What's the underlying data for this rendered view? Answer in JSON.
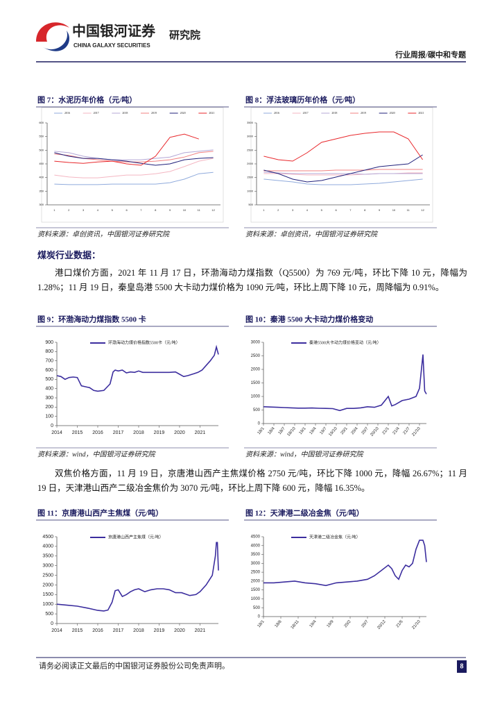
{
  "header": {
    "company_cn": "中国银河证券",
    "company_en": "CHINA GALAXY SECURITIES",
    "dept": "研究院",
    "section": "行业周报/碳中和专题"
  },
  "body": {
    "heading": "煤炭行业数据：",
    "paragraphs": [
      "港口煤价方面，2021 年 11 月 17 日，环渤海动力煤指数（Q5500）为 769 元/吨，环比下降 10 元，降幅为 1.28%；11 月 19 日，秦皇岛港 5500 大卡动力煤价格为 1090 元/吨，环比上周下降 10 元，周降幅为 0.91%。",
      "双焦价格方面，11 月 19 日，京唐港山西产主焦煤价格 2750 元/吨，环比下降 1000 元，降幅 26.67%；11 月 19 日，天津港山西产二级冶金焦价为 3070 元/吨，环比上周下降 600 元，降幅 16.35%。"
    ]
  },
  "footer": {
    "disclaimer": "请务必阅读正文最后的中国银河证券股份公司免责声明。",
    "page": 8
  },
  "chart_data": [
    {
      "type": "line",
      "title": "图 7：水泥历年价格（元/吨）",
      "source": "资料来源：卓创资讯，中国银河证券研究院",
      "categories": [
        "1",
        "2",
        "3",
        "4",
        "5",
        "6",
        "7",
        "8",
        "9",
        "10",
        "11",
        "12"
      ],
      "ylim": [
        300,
        600
      ],
      "yticks": [
        300,
        350,
        400,
        450,
        500,
        550,
        600
      ],
      "series": [
        {
          "name": "2016",
          "color": "#8faadc",
          "values": [
            376,
            374,
            374,
            374,
            376,
            376,
            376,
            376,
            381,
            394,
            414,
            419
          ]
        },
        {
          "name": "2017",
          "color": "#f4b6c2",
          "values": [
            409,
            402,
            399,
            399,
            404,
            409,
            409,
            414,
            422,
            440,
            460,
            470
          ]
        },
        {
          "name": "2018",
          "color": "#b4a7d6",
          "values": [
            496,
            491,
            478,
            470,
            465,
            465,
            465,
            470,
            475,
            491,
            496,
            501
          ]
        },
        {
          "name": "2019",
          "color": "#f08080",
          "values": [
            486,
            481,
            470,
            465,
            460,
            457,
            457,
            460,
            465,
            475,
            491,
            496
          ]
        },
        {
          "name": "2020",
          "color": "#1f1f7a",
          "values": [
            491,
            478,
            470,
            470,
            465,
            460,
            452,
            445,
            450,
            465,
            470,
            473
          ]
        },
        {
          "name": "2021",
          "color": "#e8262a",
          "values": [
            460,
            455,
            452,
            457,
            460,
            450,
            445,
            478,
            547,
            559,
            541,
            null
          ]
        }
      ]
    },
    {
      "type": "line",
      "title": "图 8：浮法玻璃历年价格（元/吨）",
      "source": "资料来源：卓创资讯，中国银河证券研究院",
      "categories": [
        "1",
        "2",
        "3",
        "4",
        "5",
        "6",
        "7",
        "8",
        "9",
        "10",
        "11",
        "12"
      ],
      "ylim": [
        500,
        3500
      ],
      "yticks": [
        500,
        1000,
        1500,
        2000,
        2500,
        3000,
        3500
      ],
      "series": [
        {
          "name": "2016",
          "color": "#8faadc",
          "values": [
            1441,
            1390,
            1339,
            1263,
            1237,
            1237,
            1237,
            1263,
            1288,
            1339,
            1390,
            1441
          ]
        },
        {
          "name": "2017",
          "color": "#f4b6c2",
          "values": [
            1644,
            1644,
            1619,
            1593,
            1593,
            1593,
            1593,
            1619,
            1644,
            1644,
            1670,
            1670
          ]
        },
        {
          "name": "2018",
          "color": "#b4a7d6",
          "values": [
            1695,
            1670,
            1644,
            1644,
            1644,
            1644,
            1644,
            1619,
            1644,
            1644,
            1644,
            1644
          ]
        },
        {
          "name": "2019",
          "color": "#f08080",
          "values": [
            1746,
            1746,
            1746,
            1746,
            1746,
            1771,
            1771,
            1771,
            1797,
            1797,
            1797,
            1797
          ]
        },
        {
          "name": "2020",
          "color": "#1f1f7a",
          "values": [
            1771,
            1644,
            1441,
            1339,
            1390,
            1517,
            1644,
            1771,
            1898,
            1949,
            2000,
            2330
          ]
        },
        {
          "name": "2021",
          "color": "#e8262a",
          "values": [
            2279,
            2152,
            2101,
            2406,
            2788,
            2915,
            3042,
            3118,
            3169,
            3169,
            2915,
            2152
          ]
        }
      ]
    },
    {
      "type": "line",
      "title": "图 9：环渤海动力煤指数 5500 卡",
      "source": "资料来源：wind，中国银河证券研究院",
      "x": [
        2014,
        2014.2,
        2014.4,
        2014.6,
        2014.8,
        2015,
        2015.2,
        2015.4,
        2015.6,
        2015.8,
        2016,
        2016.3,
        2016.6,
        2016.75,
        2016.85,
        2017,
        2017.2,
        2017.4,
        2017.6,
        2017.8,
        2018,
        2018.2,
        2018.5,
        2019,
        2019.5,
        2019.8,
        2020,
        2020.2,
        2020.4,
        2020.7,
        2020.9,
        2021.1,
        2021.3,
        2021.5,
        2021.7,
        2021.8,
        2021.9
      ],
      "xlim": [
        2014,
        2021.9
      ],
      "xticks": [
        2014,
        2015,
        2016,
        2017,
        2018,
        2019,
        2020,
        2021
      ],
      "ylim": [
        0,
        900
      ],
      "yticks": [
        0,
        100,
        200,
        300,
        400,
        500,
        600,
        700,
        800,
        900
      ],
      "series": [
        {
          "name": "环渤海动力煤价格指数5500卡（元/吨）",
          "color": "#3b2d9e",
          "values": [
            540,
            530,
            500,
            520,
            525,
            520,
            430,
            420,
            410,
            380,
            372,
            380,
            450,
            580,
            600,
            590,
            600,
            570,
            580,
            575,
            590,
            575,
            575,
            575,
            575,
            580,
            555,
            530,
            540,
            560,
            575,
            600,
            650,
            700,
            760,
            850,
            769
          ]
        }
      ]
    },
    {
      "type": "line",
      "title": "图 10：秦港 5500 大卡动力煤价格变动",
      "source": "资料来源：wind，中国银河证券研究院",
      "x": [
        0,
        2,
        4,
        6,
        8,
        10,
        12,
        14,
        16,
        18,
        20,
        22,
        24,
        26,
        28,
        30,
        32,
        34,
        36,
        37,
        38,
        40,
        42,
        44,
        45,
        46,
        46.5,
        47
      ],
      "xlim": [
        0,
        47
      ],
      "xticks": [
        {
          "value": 0,
          "label": "18/1"
        },
        {
          "value": 3,
          "label": "18/4"
        },
        {
          "value": 6,
          "label": "18/7"
        },
        {
          "value": 9,
          "label": "18/10"
        },
        {
          "value": 12,
          "label": "19/1"
        },
        {
          "value": 15,
          "label": "19/4"
        },
        {
          "value": 18,
          "label": "19/7"
        },
        {
          "value": 21,
          "label": "19/10"
        },
        {
          "value": 24,
          "label": "20/1"
        },
        {
          "value": 27,
          "label": "20/4"
        },
        {
          "value": 30,
          "label": "20/7"
        },
        {
          "value": 33,
          "label": "20/10"
        },
        {
          "value": 36,
          "label": "21/1"
        },
        {
          "value": 39,
          "label": "21/4"
        },
        {
          "value": 42,
          "label": "21/7"
        },
        {
          "value": 45,
          "label": "21/10"
        }
      ],
      "ylim": [
        0,
        3000
      ],
      "yticks": [
        0,
        500,
        1000,
        1500,
        2000,
        2500,
        3000
      ],
      "series": [
        {
          "name": "秦港5500大卡动力煤价格变动（元/吨）",
          "color": "#3b2d9e",
          "values": [
            620,
            610,
            600,
            590,
            580,
            570,
            570,
            575,
            565,
            560,
            550,
            480,
            560,
            560,
            580,
            620,
            600,
            680,
            1000,
            650,
            700,
            850,
            900,
            1000,
            1300,
            2550,
            1200,
            1090
          ]
        }
      ]
    },
    {
      "type": "line",
      "title": "图 11：京唐港山西产主焦煤（元/吨）",
      "source": "",
      "x": [
        2014,
        2014.5,
        2015,
        2015.5,
        2016,
        2016.3,
        2016.5,
        2016.7,
        2016.85,
        2017,
        2017.2,
        2017.4,
        2017.6,
        2017.8,
        2018,
        2018.3,
        2018.6,
        2018.9,
        2019.2,
        2019.5,
        2019.8,
        2020.1,
        2020.5,
        2020.8,
        2021,
        2021.3,
        2021.6,
        2021.75,
        2021.8,
        2021.85,
        2021.9
      ],
      "xlim": [
        2014,
        2021.9
      ],
      "xticks": [
        2014,
        2015,
        2016,
        2017,
        2018,
        2019,
        2020,
        2021
      ],
      "ylim": [
        0,
        4500
      ],
      "yticks": [
        0,
        500,
        1000,
        1500,
        2000,
        2500,
        3000,
        3500,
        4000,
        4500
      ],
      "series": [
        {
          "name": "京唐港山西产主焦煤（元/吨）",
          "color": "#3b2d9e",
          "values": [
            1000,
            950,
            900,
            800,
            680,
            650,
            700,
            1100,
            1700,
            1750,
            1400,
            1500,
            1650,
            1750,
            1800,
            1650,
            1750,
            1800,
            1800,
            1750,
            1600,
            1600,
            1450,
            1500,
            1650,
            2000,
            2500,
            3500,
            4200,
            4200,
            2750
          ]
        }
      ]
    },
    {
      "type": "line",
      "title": "图 12：天津港二级冶金焦（元/吨）",
      "source": "",
      "x": [
        0,
        3,
        6,
        9,
        12,
        15,
        18,
        21,
        24,
        27,
        30,
        32,
        34,
        36,
        37,
        38,
        39,
        40,
        41,
        42,
        43,
        44,
        45,
        46,
        46.5,
        47
      ],
      "xlim": [
        0,
        47
      ],
      "xticks": [
        {
          "value": 0,
          "label": "18/1"
        },
        {
          "value": 5,
          "label": "18/6"
        },
        {
          "value": 10,
          "label": "18/11"
        },
        {
          "value": 15,
          "label": "19/4"
        },
        {
          "value": 20,
          "label": "19/9"
        },
        {
          "value": 25,
          "label": "20/2"
        },
        {
          "value": 30,
          "label": "20/7"
        },
        {
          "value": 35,
          "label": "20/12"
        },
        {
          "value": 40,
          "label": "21/5"
        },
        {
          "value": 45,
          "label": "21/10"
        }
      ],
      "ylim": [
        0,
        4500
      ],
      "yticks": [
        0,
        500,
        1000,
        1500,
        2000,
        2500,
        3000,
        3500,
        4000,
        4500
      ],
      "series": [
        {
          "name": "天津港二级冶金焦（元/吨）",
          "color": "#3b2d9e",
          "values": [
            1900,
            1900,
            1950,
            2000,
            1900,
            1850,
            1750,
            1900,
            1950,
            2000,
            2100,
            2300,
            2600,
            2900,
            2700,
            2300,
            2100,
            2600,
            2900,
            2800,
            3000,
            3800,
            4300,
            4300,
            4000,
            3070
          ]
        }
      ]
    }
  ]
}
